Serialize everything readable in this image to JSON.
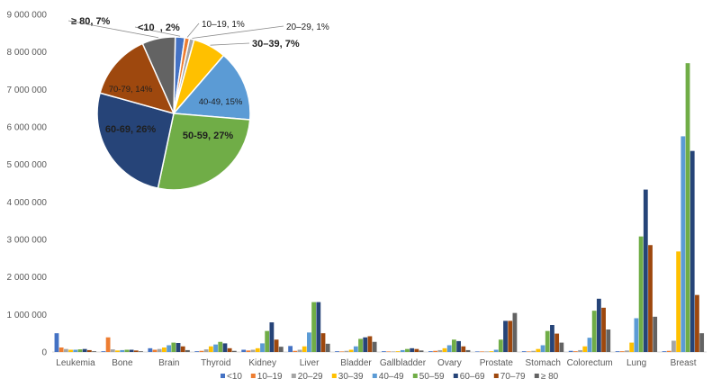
{
  "chart_data": [
    {
      "type": "bar",
      "title": "",
      "xlabel": "",
      "ylabel": "",
      "ylim": [
        0,
        9000000
      ],
      "yticks": [
        "0",
        "1 000 000",
        "2 000 000",
        "3 000 000",
        "4 000 000",
        "5 000 000",
        "6 000 000",
        "7 000 000",
        "8 000 000",
        "9 000 000"
      ],
      "grid": false,
      "legend_position": "bottom",
      "categories": [
        "Leukemia",
        "Bone",
        "Brain",
        "Thyroid",
        "Kidney",
        "Liver",
        "Bladder",
        "Gallbladder",
        "Ovary",
        "Prostate",
        "Stomach",
        "Colorectum",
        "Lung",
        "Breast"
      ],
      "series": [
        {
          "name": "<10",
          "color": "#4472c4",
          "values": [
            500000,
            20000,
            100000,
            20000,
            60000,
            160000,
            20000,
            20000,
            20000,
            10000,
            20000,
            30000,
            20000,
            20000
          ]
        },
        {
          "name": "10–19",
          "color": "#ed7d31",
          "values": [
            120000,
            390000,
            60000,
            30000,
            40000,
            30000,
            10000,
            10000,
            30000,
            10000,
            10000,
            20000,
            20000,
            30000
          ]
        },
        {
          "name": "20–29",
          "color": "#a5a5a5",
          "values": [
            80000,
            70000,
            80000,
            70000,
            60000,
            60000,
            30000,
            10000,
            50000,
            10000,
            30000,
            50000,
            40000,
            300000
          ]
        },
        {
          "name": "30–39",
          "color": "#ffc000",
          "values": [
            60000,
            40000,
            120000,
            150000,
            100000,
            150000,
            60000,
            20000,
            100000,
            20000,
            80000,
            150000,
            250000,
            2680000
          ]
        },
        {
          "name": "40–49",
          "color": "#5b9bd5",
          "values": [
            60000,
            50000,
            180000,
            200000,
            230000,
            520000,
            150000,
            50000,
            180000,
            60000,
            180000,
            380000,
            900000,
            5750000
          ]
        },
        {
          "name": "50–59",
          "color": "#70ad47",
          "values": [
            70000,
            60000,
            250000,
            270000,
            560000,
            1330000,
            350000,
            80000,
            330000,
            330000,
            560000,
            1100000,
            3080000,
            7700000
          ]
        },
        {
          "name": "60–69",
          "color": "#264478",
          "values": [
            80000,
            60000,
            240000,
            230000,
            790000,
            1330000,
            390000,
            100000,
            290000,
            830000,
            720000,
            1420000,
            4330000,
            5360000
          ]
        },
        {
          "name": "70–79",
          "color": "#9e480e",
          "values": [
            50000,
            40000,
            150000,
            100000,
            330000,
            500000,
            420000,
            80000,
            150000,
            830000,
            490000,
            1180000,
            2850000,
            1520000
          ]
        },
        {
          "name": "≥ 80",
          "color": "#636363",
          "values": [
            20000,
            20000,
            50000,
            30000,
            140000,
            220000,
            270000,
            40000,
            50000,
            1040000,
            250000,
            600000,
            940000,
            500000
          ]
        }
      ]
    },
    {
      "type": "pie",
      "title": "",
      "slices": [
        {
          "label": "<10",
          "label_text": "<10  , 2%",
          "value": 2,
          "color": "#4472c4"
        },
        {
          "label": "10–19",
          "label_text": "10–19, 1%",
          "value": 1,
          "color": "#ed7d31"
        },
        {
          "label": "20–29",
          "label_text": "20–29, 1%",
          "value": 1,
          "color": "#a5a5a5"
        },
        {
          "label": "30–39",
          "label_text": "30–39, 7%",
          "value": 7,
          "color": "#ffc000"
        },
        {
          "label": "40–49",
          "label_text": "40-49, 15%",
          "value": 15,
          "color": "#5b9bd5"
        },
        {
          "label": "50–59",
          "label_text": "50-59, 27%",
          "value": 27,
          "color": "#70ad47"
        },
        {
          "label": "60–69",
          "label_text": "60-69, 26%",
          "value": 26,
          "color": "#264478"
        },
        {
          "label": "70–79",
          "label_text": "70-79, 14%",
          "value": 14,
          "color": "#9e480e"
        },
        {
          "label": "≥ 80",
          "label_text": "≥ 80, 7%",
          "value": 7,
          "color": "#636363"
        }
      ]
    }
  ]
}
